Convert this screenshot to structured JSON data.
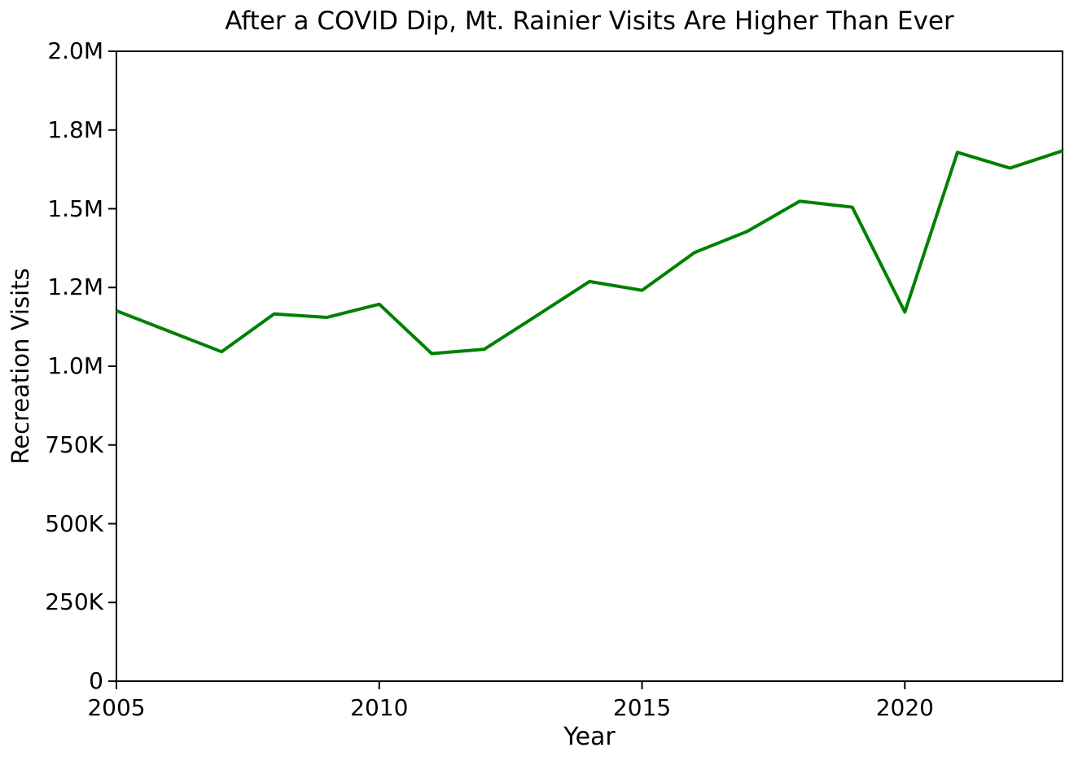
{
  "chart_data": {
    "type": "line",
    "title": "After a COVID Dip, Mt. Rainier Visits Are Higher Than Ever",
    "xlabel": "Year",
    "ylabel": "Recreation Visits",
    "x": [
      2005,
      2006,
      2007,
      2008,
      2009,
      2010,
      2011,
      2012,
      2013,
      2014,
      2015,
      2016,
      2017,
      2018,
      2019,
      2020,
      2021,
      2022,
      2023
    ],
    "series": [
      {
        "name": "Recreation Visits",
        "values": [
          1176000,
          1111000,
          1046000,
          1166000,
          1155000,
          1197000,
          1040000,
          1054000,
          1161000,
          1269000,
          1241000,
          1361000,
          1428000,
          1524000,
          1505000,
          1172000,
          1679000,
          1629000,
          1684000
        ]
      }
    ],
    "xlim": [
      2005,
      2023
    ],
    "ylim": [
      0,
      2000000
    ],
    "xticks": [
      {
        "value": 2005,
        "label": "2005"
      },
      {
        "value": 2010,
        "label": "2010"
      },
      {
        "value": 2015,
        "label": "2015"
      },
      {
        "value": 2020,
        "label": "2020"
      }
    ],
    "yticks": [
      {
        "value": 0,
        "label": "0"
      },
      {
        "value": 250000,
        "label": "250K"
      },
      {
        "value": 500000,
        "label": "500K"
      },
      {
        "value": 750000,
        "label": "750K"
      },
      {
        "value": 1000000,
        "label": "1.0M"
      },
      {
        "value": 1250000,
        "label": "1.2M"
      },
      {
        "value": 1500000,
        "label": "1.5M"
      },
      {
        "value": 1750000,
        "label": "1.8M"
      },
      {
        "value": 2000000,
        "label": "2.0M"
      }
    ],
    "grid": false,
    "legend": "none",
    "line_color": "#008000",
    "line_width": 4,
    "axis_color": "#000000",
    "background_color": "#ffffff"
  }
}
